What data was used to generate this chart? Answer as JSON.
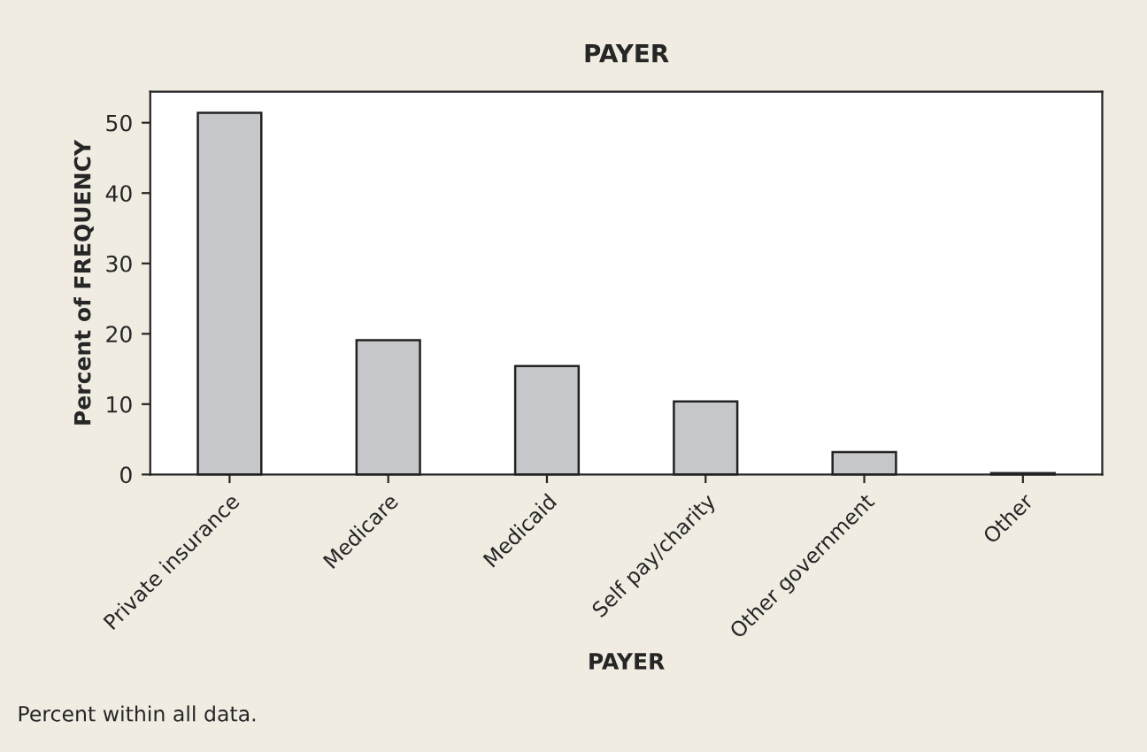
{
  "chart_data": {
    "type": "bar",
    "title": "PAYER",
    "xlabel": "PAYER",
    "ylabel": "Percent of FREQUENCY",
    "categories": [
      "Private insurance",
      "Medicare",
      "Medicaid",
      "Self pay/charity",
      "Other government",
      "Other"
    ],
    "values": [
      51.4,
      19.1,
      15.4,
      10.4,
      3.2,
      0.2
    ],
    "color": "#c6c7ca",
    "ylim": [
      0,
      54.4
    ],
    "yticks": [
      0,
      10,
      20,
      30,
      40,
      50
    ],
    "grid": false,
    "legend": false,
    "annotations": [
      "Percent within all data."
    ]
  }
}
